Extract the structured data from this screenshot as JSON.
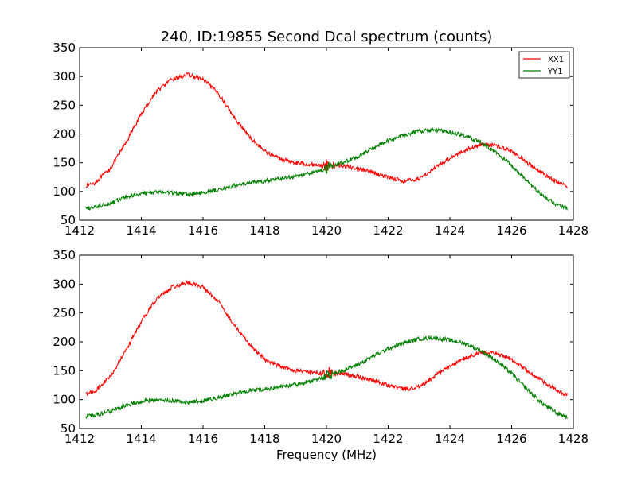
{
  "chart_data": [
    {
      "type": "line",
      "title": "240, ID:19855 Second Dcal spectrum (counts)",
      "xlabel": "",
      "ylabel": "",
      "xlim": [
        1412,
        1428
      ],
      "ylim": [
        50,
        350
      ],
      "xticks": [
        1412,
        1414,
        1416,
        1418,
        1420,
        1422,
        1424,
        1426,
        1428
      ],
      "yticks": [
        50,
        100,
        150,
        200,
        250,
        300,
        350
      ],
      "grid": false,
      "legend": "top-right",
      "series": [
        {
          "name": "XX1",
          "color": "#ff0000",
          "x": [
            1412.2,
            1412.5,
            1413.0,
            1413.5,
            1414.0,
            1414.5,
            1415.0,
            1415.5,
            1416.0,
            1416.5,
            1417.0,
            1417.5,
            1418.0,
            1418.5,
            1419.0,
            1419.5,
            1420.0,
            1420.5,
            1421.0,
            1421.5,
            1422.0,
            1422.5,
            1423.0,
            1423.5,
            1424.0,
            1424.5,
            1425.0,
            1425.5,
            1426.0,
            1426.5,
            1427.0,
            1427.5,
            1427.8
          ],
          "y": [
            110,
            115,
            140,
            185,
            235,
            275,
            295,
            303,
            295,
            270,
            230,
            195,
            170,
            157,
            150,
            147,
            145,
            145,
            140,
            133,
            125,
            118,
            122,
            140,
            158,
            172,
            182,
            180,
            170,
            150,
            132,
            115,
            108
          ]
        },
        {
          "name": "YY1",
          "color": "#007f00",
          "x": [
            1412.2,
            1412.5,
            1413.0,
            1413.5,
            1414.0,
            1414.5,
            1415.0,
            1415.5,
            1416.0,
            1416.5,
            1417.0,
            1417.5,
            1418.0,
            1418.5,
            1419.0,
            1419.5,
            1420.0,
            1420.5,
            1421.0,
            1421.5,
            1422.0,
            1422.5,
            1423.0,
            1423.5,
            1424.0,
            1424.5,
            1425.0,
            1425.5,
            1426.0,
            1426.5,
            1427.0,
            1427.5,
            1427.8
          ],
          "y": [
            70,
            73,
            80,
            90,
            97,
            99,
            98,
            95,
            98,
            103,
            110,
            115,
            118,
            122,
            126,
            132,
            140,
            150,
            160,
            175,
            188,
            198,
            205,
            207,
            203,
            197,
            185,
            168,
            145,
            118,
            93,
            76,
            70
          ]
        }
      ],
      "annotations": [
        {
          "x": 1420.0,
          "series": "XX1",
          "amplitude": 12
        },
        {
          "x": 1420.0,
          "series": "YY1",
          "amplitude": 10
        }
      ]
    },
    {
      "type": "line",
      "title": "",
      "xlabel": "Frequency (MHz)",
      "ylabel": "",
      "xlim": [
        1412,
        1428
      ],
      "ylim": [
        50,
        350
      ],
      "xticks": [
        1412,
        1414,
        1416,
        1418,
        1420,
        1422,
        1424,
        1426,
        1428
      ],
      "yticks": [
        50,
        100,
        150,
        200,
        250,
        300,
        350
      ],
      "grid": false,
      "legend": "none",
      "series": [
        {
          "name": "",
          "color": "#ff0000",
          "x": [
            1412.2,
            1412.5,
            1413.0,
            1413.5,
            1414.0,
            1414.5,
            1415.0,
            1415.5,
            1416.0,
            1416.5,
            1417.0,
            1417.5,
            1418.0,
            1418.5,
            1419.0,
            1419.5,
            1420.0,
            1420.5,
            1421.0,
            1421.5,
            1422.0,
            1422.5,
            1423.0,
            1423.5,
            1424.0,
            1424.5,
            1425.0,
            1425.5,
            1426.0,
            1426.5,
            1427.0,
            1427.5,
            1427.8
          ],
          "y": [
            110,
            115,
            140,
            185,
            235,
            275,
            295,
            303,
            295,
            270,
            230,
            195,
            170,
            157,
            150,
            147,
            145,
            145,
            140,
            133,
            125,
            118,
            122,
            140,
            158,
            172,
            182,
            180,
            170,
            150,
            132,
            115,
            108
          ]
        },
        {
          "name": "",
          "color": "#007f00",
          "x": [
            1412.2,
            1412.5,
            1413.0,
            1413.5,
            1414.0,
            1414.5,
            1415.0,
            1415.5,
            1416.0,
            1416.5,
            1417.0,
            1417.5,
            1418.0,
            1418.5,
            1419.0,
            1419.5,
            1420.0,
            1420.5,
            1421.0,
            1421.5,
            1422.0,
            1422.5,
            1423.0,
            1423.5,
            1424.0,
            1424.5,
            1425.0,
            1425.5,
            1426.0,
            1426.5,
            1427.0,
            1427.5,
            1427.8
          ],
          "y": [
            70,
            73,
            80,
            90,
            97,
            99,
            98,
            95,
            98,
            103,
            110,
            115,
            118,
            122,
            126,
            132,
            140,
            150,
            160,
            175,
            188,
            198,
            205,
            207,
            203,
            197,
            185,
            168,
            145,
            118,
            93,
            76,
            70
          ]
        }
      ]
    }
  ]
}
